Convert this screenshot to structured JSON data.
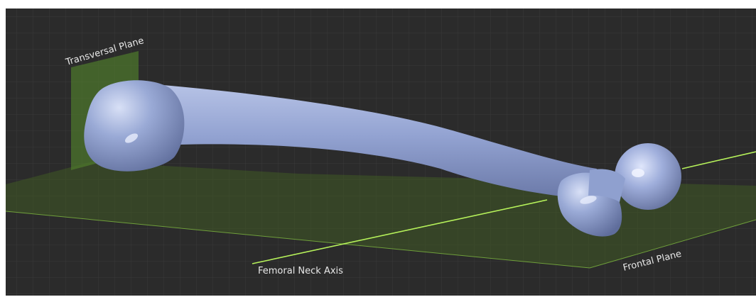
{
  "viewport": {
    "background_color": "#2b2b2b",
    "grid_color": "#3a3a3a",
    "bone_color": "#9aaad6"
  },
  "labels": {
    "transversal_plane": "Transversal Plane",
    "femoral_neck_axis": "Femoral Neck Axis",
    "frontal_plane": "Frontal Plane"
  },
  "planes": {
    "color": "#4e7a2c",
    "axis_color": "#b6f25a"
  }
}
